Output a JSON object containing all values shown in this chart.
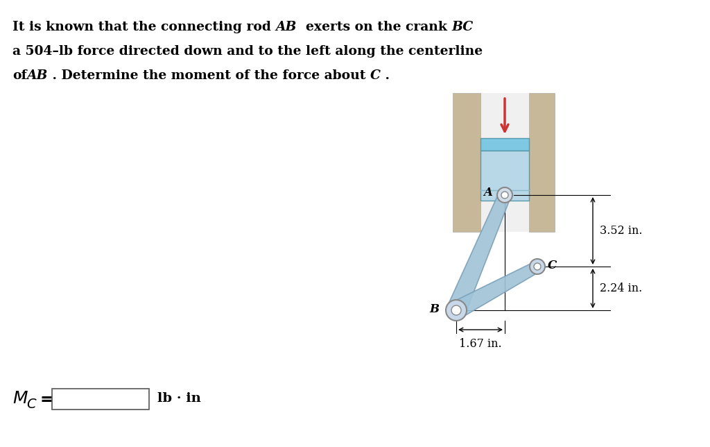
{
  "bg_color": "#ffffff",
  "text_color": "#000000",
  "cylinder_color": "#c8b89a",
  "cylinder_inner_color": "#f0f0f0",
  "piston_top_color": "#7ec8e3",
  "piston_body_color": "#b8d8e8",
  "rod_color": "#a0c4d8",
  "rod_edge_color": "#7aa0b8",
  "pin_face_color": "#c0d8e8",
  "pin_outline": "#888888",
  "arrow_color": "#cc3333",
  "dim1": "3.52 in.",
  "dim2": "2.24 in.",
  "dim3": "1.67 in.",
  "font_size_problem": 13.5,
  "font_size_dim": 11.5,
  "font_size_label": 12,
  "font_size_answer": 16
}
